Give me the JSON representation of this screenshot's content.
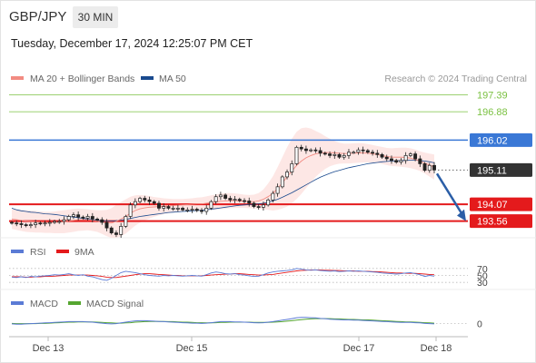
{
  "header": {
    "pair": "GBP/JPY",
    "timeframe": "30 MIN",
    "datetime": "Tuesday, December 17, 2024 12:25:07 PM CET"
  },
  "legend": {
    "ma20_bb": "MA 20 + Bollinger Bands",
    "ma50": "MA 50",
    "credit": "Research © 2024 Trading Central",
    "rsi": "RSI",
    "rsi_ma": "9MA",
    "macd": "MACD",
    "macd_signal": "MACD Signal"
  },
  "colors": {
    "ma20": "#f28b82",
    "bollinger_fill": "#fde3e1",
    "ma50": "#1a4a8e",
    "candle": "#222222",
    "resistance_green": "#7bc142",
    "level_blue": "#3a78d6",
    "support_red": "#e41a1c",
    "arrow": "#2b5ea7",
    "rsi": "#5b7bd5",
    "rsi_ma": "#e41a1c",
    "macd": "#5b7bd5",
    "macd_signal": "#55a630"
  },
  "chart_data": [
    {
      "type": "candlestick",
      "title": "GBP/JPY",
      "x_labels": [
        "Dec 13",
        "Dec 15",
        "Dec 17",
        "Dec 18"
      ],
      "ylim": [
        193.3,
        197.6
      ],
      "price_levels": [
        {
          "value": 197.39,
          "label": "197.39",
          "kind": "resistance"
        },
        {
          "value": 196.88,
          "label": "196.88",
          "kind": "resistance"
        },
        {
          "value": 196.02,
          "label": "196.02",
          "kind": "pivot"
        },
        {
          "value": 195.11,
          "label": "195.11",
          "kind": "last"
        },
        {
          "value": 194.07,
          "label": "194.07",
          "kind": "support"
        },
        {
          "value": 193.56,
          "label": "193.56",
          "kind": "support"
        }
      ],
      "close_series": [
        193.5,
        193.48,
        193.45,
        193.42,
        193.45,
        193.5,
        193.48,
        193.5,
        193.52,
        193.55,
        193.55,
        193.6,
        193.7,
        193.75,
        193.68,
        193.65,
        193.7,
        193.62,
        193.6,
        193.52,
        193.35,
        193.2,
        193.15,
        193.4,
        193.7,
        194.05,
        194.15,
        194.25,
        194.2,
        194.15,
        194.1,
        193.95,
        194.0,
        193.95,
        193.95,
        193.95,
        193.9,
        193.9,
        193.92,
        193.88,
        193.85,
        193.95,
        194.15,
        194.3,
        194.35,
        194.25,
        194.2,
        194.22,
        194.18,
        194.17,
        194.1,
        194.0,
        193.98,
        194.05,
        194.2,
        194.4,
        194.6,
        194.9,
        195.05,
        195.3,
        195.8,
        195.75,
        195.7,
        195.72,
        195.7,
        195.62,
        195.6,
        195.55,
        195.58,
        195.5,
        195.55,
        195.65,
        195.65,
        195.72,
        195.7,
        195.65,
        195.62,
        195.58,
        195.5,
        195.45,
        195.4,
        195.35,
        195.4,
        195.55,
        195.6,
        195.45,
        195.3,
        195.1,
        195.25,
        195.11
      ],
      "ma20_series": [
        193.62,
        193.6,
        193.58,
        193.56,
        193.55,
        193.54,
        193.53,
        193.52,
        193.52,
        193.52,
        193.53,
        193.54,
        193.56,
        193.58,
        193.6,
        193.6,
        193.6,
        193.58,
        193.56,
        193.53,
        193.5,
        193.5,
        193.55,
        193.62,
        193.7,
        193.8,
        193.88,
        193.93,
        193.96,
        193.98,
        193.99,
        194.0,
        194.01,
        194.02,
        194.03,
        194.04,
        194.05,
        194.06,
        194.07,
        194.08,
        194.08,
        194.1,
        194.12,
        194.14,
        194.16,
        194.17,
        194.18,
        194.18,
        194.17,
        194.16,
        194.15,
        194.15,
        194.17,
        194.22,
        194.3,
        194.4,
        194.55,
        194.72,
        194.9,
        195.08,
        195.25,
        195.38,
        195.48,
        195.55,
        195.6,
        195.63,
        195.64,
        195.64,
        195.63,
        195.62,
        195.61,
        195.61,
        195.62,
        195.63,
        195.63,
        195.62,
        195.6,
        195.58,
        195.55,
        195.52,
        195.5,
        195.5,
        195.5,
        195.49,
        195.47,
        195.43,
        195.38,
        195.32,
        195.26,
        195.2
      ],
      "ma50_series": [
        193.95,
        193.9,
        193.87,
        193.85,
        193.83,
        193.82,
        193.8,
        193.78,
        193.77,
        193.76,
        193.74,
        193.72,
        193.7,
        193.68,
        193.66,
        193.64,
        193.62,
        193.6,
        193.58,
        193.57,
        193.56,
        193.56,
        193.57,
        193.59,
        193.61,
        193.64,
        193.67,
        193.7,
        193.72,
        193.74,
        193.76,
        193.78,
        193.8,
        193.82,
        193.83,
        193.84,
        193.85,
        193.86,
        193.87,
        193.88,
        193.89,
        193.9,
        193.92,
        193.94,
        193.96,
        193.98,
        194.0,
        194.02,
        194.04,
        194.05,
        194.06,
        194.07,
        194.08,
        194.1,
        194.13,
        194.17,
        194.22,
        194.28,
        194.35,
        194.42,
        194.5,
        194.58,
        194.66,
        194.74,
        194.82,
        194.89,
        194.95,
        195.01,
        195.06,
        195.1,
        195.14,
        195.18,
        195.21,
        195.24,
        195.27,
        195.3,
        195.32,
        195.34,
        195.36,
        195.37,
        195.38,
        195.39,
        195.4,
        195.4,
        195.41,
        195.41,
        195.4,
        195.38,
        195.36,
        195.33
      ],
      "bb_width_series": [
        0.3,
        0.31,
        0.32,
        0.33,
        0.33,
        0.33,
        0.32,
        0.32,
        0.32,
        0.33,
        0.34,
        0.35,
        0.35,
        0.35,
        0.34,
        0.33,
        0.32,
        0.32,
        0.33,
        0.36,
        0.4,
        0.45,
        0.5,
        0.52,
        0.52,
        0.5,
        0.46,
        0.42,
        0.38,
        0.34,
        0.3,
        0.27,
        0.24,
        0.22,
        0.2,
        0.19,
        0.18,
        0.18,
        0.18,
        0.19,
        0.2,
        0.21,
        0.22,
        0.23,
        0.24,
        0.24,
        0.23,
        0.22,
        0.21,
        0.2,
        0.2,
        0.21,
        0.24,
        0.3,
        0.4,
        0.52,
        0.65,
        0.78,
        0.9,
        0.98,
        1.02,
        1.0,
        0.92,
        0.82,
        0.7,
        0.6,
        0.5,
        0.42,
        0.36,
        0.32,
        0.3,
        0.3,
        0.3,
        0.3,
        0.29,
        0.28,
        0.27,
        0.26,
        0.26,
        0.26,
        0.27,
        0.28,
        0.29,
        0.3,
        0.3,
        0.3,
        0.3,
        0.32,
        0.35,
        0.38
      ]
    },
    {
      "type": "line",
      "title": "RSI",
      "yticks": [
        70,
        50,
        30
      ],
      "ylim": [
        20,
        80
      ],
      "series": [
        {
          "name": "RSI",
          "values": [
            45,
            44,
            46,
            44,
            47,
            46,
            48,
            49,
            50,
            52,
            51,
            53,
            55,
            52,
            50,
            52,
            48,
            46,
            42,
            38,
            36,
            42,
            50,
            58,
            62,
            60,
            58,
            55,
            52,
            50,
            49,
            48,
            50,
            49,
            50,
            49,
            48,
            49,
            50,
            49,
            48,
            52,
            57,
            60,
            58,
            55,
            54,
            55,
            52,
            51,
            49,
            47,
            48,
            52,
            57,
            60,
            62,
            63,
            64,
            66,
            70,
            68,
            66,
            65,
            66,
            64,
            63,
            62,
            63,
            61,
            62,
            63,
            62,
            63,
            62,
            61,
            60,
            59,
            57,
            56,
            55,
            54,
            55,
            57,
            58,
            55,
            52,
            47,
            50,
            48
          ]
        },
        {
          "name": "9MA",
          "values": [
            46,
            46,
            46,
            45,
            45,
            46,
            46,
            47,
            47,
            48,
            49,
            50,
            51,
            51,
            51,
            51,
            51,
            50,
            49,
            47,
            45,
            44,
            44,
            46,
            48,
            50,
            52,
            54,
            55,
            55,
            54,
            53,
            52,
            51,
            50,
            50,
            49,
            49,
            49,
            49,
            49,
            50,
            51,
            52,
            53,
            54,
            54,
            55,
            55,
            54,
            53,
            52,
            51,
            51,
            52,
            53,
            55,
            57,
            59,
            61,
            63,
            64,
            65,
            66,
            66,
            66,
            65,
            65,
            64,
            64,
            63,
            63,
            63,
            62,
            62,
            62,
            61,
            61,
            60,
            59,
            58,
            57,
            57,
            56,
            56,
            56,
            55,
            54,
            53,
            52
          ]
        }
      ]
    },
    {
      "type": "line",
      "title": "MACD",
      "yticks": [
        0
      ],
      "ylim": [
        -0.35,
        0.45
      ],
      "series": [
        {
          "name": "MACD",
          "values": [
            -0.02,
            -0.03,
            -0.03,
            -0.02,
            -0.01,
            0.0,
            0.01,
            0.02,
            0.03,
            0.04,
            0.05,
            0.06,
            0.07,
            0.07,
            0.07,
            0.07,
            0.06,
            0.05,
            0.03,
            0.01,
            -0.01,
            -0.02,
            -0.01,
            0.02,
            0.05,
            0.08,
            0.1,
            0.11,
            0.11,
            0.1,
            0.09,
            0.08,
            0.07,
            0.06,
            0.05,
            0.04,
            0.03,
            0.02,
            0.01,
            0.01,
            0.0,
            0.01,
            0.03,
            0.05,
            0.07,
            0.07,
            0.07,
            0.06,
            0.06,
            0.05,
            0.04,
            0.03,
            0.02,
            0.03,
            0.05,
            0.07,
            0.1,
            0.13,
            0.16,
            0.19,
            0.23,
            0.24,
            0.24,
            0.23,
            0.22,
            0.2,
            0.19,
            0.17,
            0.16,
            0.15,
            0.14,
            0.14,
            0.13,
            0.13,
            0.12,
            0.11,
            0.1,
            0.09,
            0.08,
            0.07,
            0.06,
            0.05,
            0.04,
            0.04,
            0.04,
            0.03,
            0.02,
            0.0,
            -0.01,
            -0.02
          ]
        },
        {
          "name": "MACD Signal",
          "values": [
            0.0,
            -0.01,
            -0.01,
            -0.01,
            -0.01,
            -0.01,
            0.0,
            0.0,
            0.01,
            0.02,
            0.03,
            0.04,
            0.05,
            0.05,
            0.06,
            0.06,
            0.06,
            0.06,
            0.05,
            0.04,
            0.03,
            0.02,
            0.01,
            0.01,
            0.02,
            0.03,
            0.05,
            0.06,
            0.07,
            0.08,
            0.08,
            0.08,
            0.08,
            0.07,
            0.07,
            0.06,
            0.05,
            0.05,
            0.04,
            0.03,
            0.03,
            0.02,
            0.02,
            0.03,
            0.04,
            0.04,
            0.05,
            0.05,
            0.05,
            0.05,
            0.05,
            0.04,
            0.04,
            0.04,
            0.04,
            0.05,
            0.06,
            0.07,
            0.09,
            0.11,
            0.13,
            0.15,
            0.17,
            0.18,
            0.19,
            0.19,
            0.19,
            0.19,
            0.18,
            0.18,
            0.17,
            0.16,
            0.16,
            0.15,
            0.14,
            0.14,
            0.13,
            0.12,
            0.11,
            0.1,
            0.09,
            0.08,
            0.07,
            0.06,
            0.06,
            0.05,
            0.04,
            0.03,
            0.02,
            0.01
          ]
        }
      ]
    }
  ]
}
